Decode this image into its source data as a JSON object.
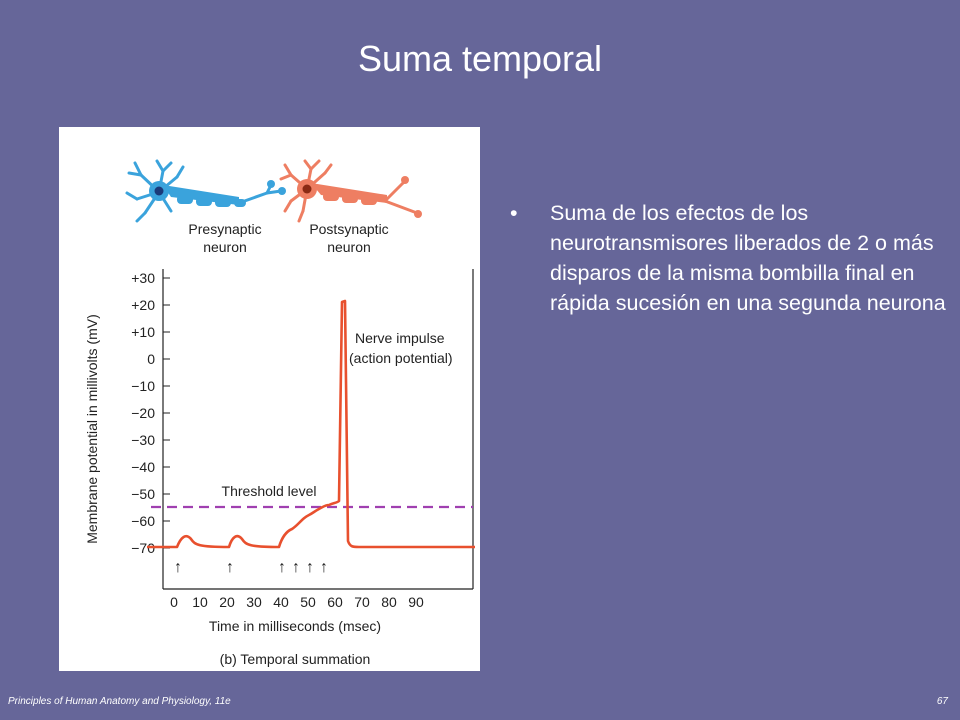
{
  "slide": {
    "title": "Suma temporal",
    "bullet_char": "•",
    "bullets": [
      "Suma de los efectos de los neurotransmisores liberados de 2 o más disparos de la misma bombilla final en rápida sucesión en una segunda neurona"
    ],
    "footer_left": "Principles of Human Anatomy and Physiology, 11e",
    "page_number": "67"
  },
  "figure": {
    "presynaptic_label_1": "Presynaptic",
    "presynaptic_label_2": "neuron",
    "postsynaptic_label_1": "Postsynaptic",
    "postsynaptic_label_2": "neuron",
    "nerve_impulse_1": "Nerve impulse",
    "nerve_impulse_2": "(action potential)",
    "threshold_label": "Threshold level",
    "ylabel": "Membrane potential in millivolts (mV)",
    "xlabel": "Time in milliseconds (msec)",
    "caption": "(b) Temporal summation",
    "y_ticks": [
      "+30",
      "+20",
      "+10",
      "0",
      "−10",
      "−20",
      "−30",
      "−40",
      "−50",
      "−60",
      "−70"
    ],
    "x_ticks": [
      "0",
      "10",
      "20",
      "30",
      "40",
      "50",
      "60",
      "70",
      "80",
      "90"
    ],
    "stimulus_arrow_char": "↑",
    "colors": {
      "trace": "#e8502e",
      "threshold": "#a040b0",
      "presynaptic": "#3aa3dc",
      "postsynaptic": "#ee7e62"
    }
  }
}
